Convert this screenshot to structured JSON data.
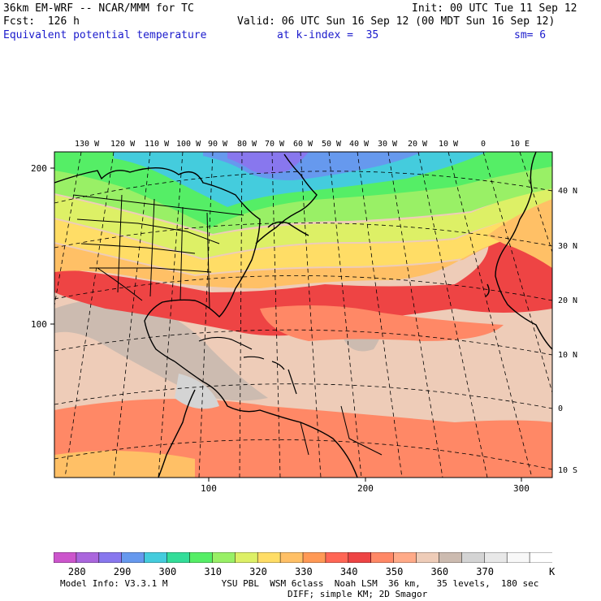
{
  "header": {
    "model": "36km EM-WRF -- NCAR/MMM for TC",
    "init": "Init: 00 UTC Tue 11 Sep 12",
    "fcst": "Fcst:  126 h",
    "valid": "Valid: 06 UTC Sun 16 Sep 12 (00 MDT Sun 16 Sep 12)",
    "field": "Equivalent potential temperature",
    "kindex": "at k-index =  35",
    "sm": "sm= 6"
  },
  "map": {
    "lon_labels": [
      "130 W",
      "120 W",
      "110 W",
      "100 W",
      "90 W",
      "80 W",
      "70 W",
      "60 W",
      "50 W",
      "40 W",
      "30 W",
      "20 W",
      "10 W",
      "0",
      "10 E"
    ],
    "lat_labels": [
      "40 N",
      "30 N",
      "20 N",
      "10 N",
      "0",
      "10 S"
    ],
    "grid_y_labels": [
      "200",
      "100"
    ],
    "grid_x_labels": [
      "100",
      "200",
      "300"
    ],
    "line_color": "#000000"
  },
  "colorbar": {
    "colors": [
      "#cc55cc",
      "#aa66dd",
      "#8877ee",
      "#6699ee",
      "#44ccdd",
      "#33dd99",
      "#55ee66",
      "#99f066",
      "#ddf066",
      "#ffdd66",
      "#ffc066",
      "#ff9955",
      "#ff6655",
      "#ee4444",
      "#ff8866",
      "#ffaa88",
      "#eeccb8",
      "#ccbbb0",
      "#d4d4d4",
      "#e8e8e8",
      "#f8f8f8",
      "#ffffff"
    ],
    "labels": [
      "280",
      "290",
      "300",
      "310",
      "320",
      "330",
      "340",
      "350",
      "360",
      "370",
      "K"
    ]
  },
  "footer": {
    "line1": "Model Info: V3.3.1 M          YSU PBL  WSM 6class  Noah LSM  36 km,   35 levels,  180 sec",
    "line2": "DIFF; simple KM; 2D Smagor"
  }
}
